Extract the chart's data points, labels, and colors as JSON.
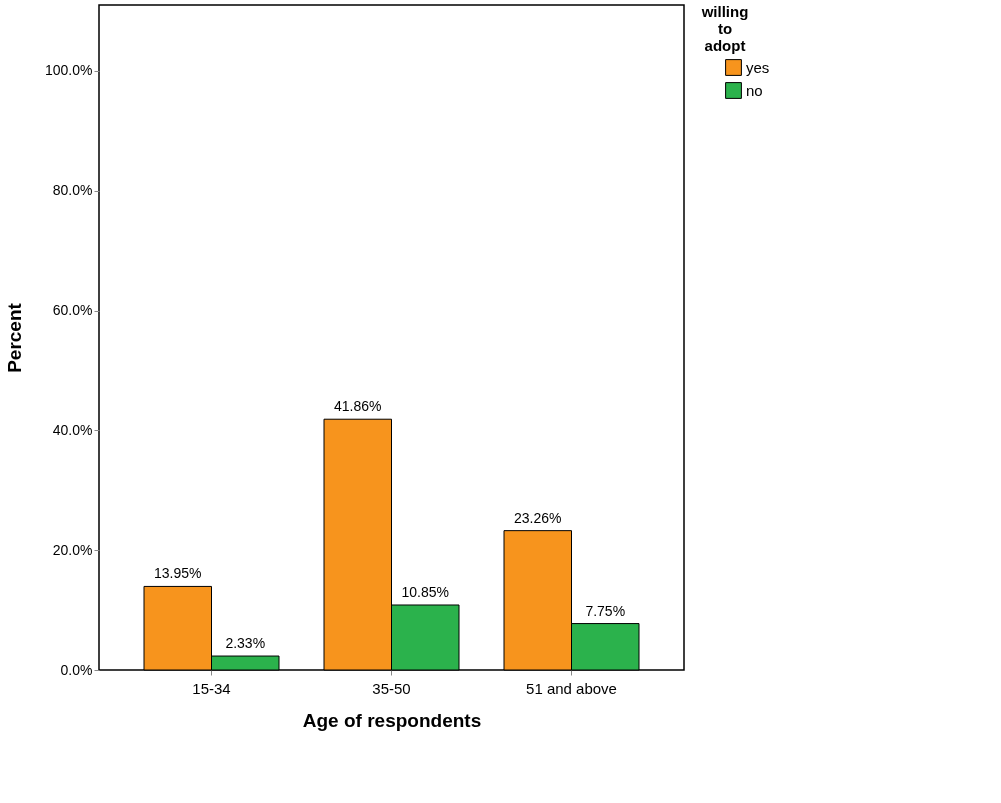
{
  "chart_data": {
    "type": "bar",
    "xlabel": "Age of respondents",
    "ylabel": "Percent",
    "legend_title": "willing to adopt",
    "categories": [
      "15-34",
      "35-50",
      "51 and above"
    ],
    "series": [
      {
        "name": "yes",
        "color": "#f7941d",
        "values": [
          13.95,
          41.86,
          23.26
        ],
        "value_labels": [
          "13.95%",
          "41.86%",
          "23.26%"
        ]
      },
      {
        "name": "no",
        "color": "#2bb24c",
        "values": [
          2.33,
          10.85,
          7.75
        ],
        "value_labels": [
          "2.33%",
          "10.85%",
          "7.75%"
        ]
      }
    ],
    "ylim": [
      0,
      111
    ],
    "yticks": [
      {
        "value": 0,
        "label": "0.0%"
      },
      {
        "value": 20,
        "label": "20.0%"
      },
      {
        "value": 40,
        "label": "40.0%"
      },
      {
        "value": 60,
        "label": "60.0%"
      },
      {
        "value": 80,
        "label": "80.0%"
      },
      {
        "value": 100,
        "label": "100.0%"
      }
    ],
    "grid": false,
    "legend": "top right"
  }
}
